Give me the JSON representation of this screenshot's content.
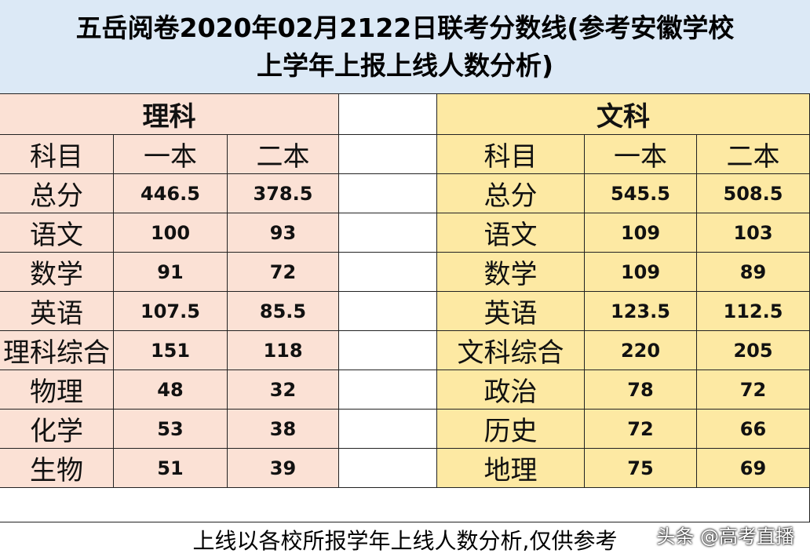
{
  "header": {
    "title_lines": [
      "五岳阅卷2020年02月2122日联考分数线(参考安徽学校",
      "上学年上报上线人数分析)"
    ]
  },
  "science": {
    "title": "理科",
    "columns": [
      "科目",
      "一本",
      "二本"
    ],
    "rows": [
      [
        "总分",
        446.5,
        378.5
      ],
      [
        "语文",
        100,
        93
      ],
      [
        "数学",
        91,
        72
      ],
      [
        "英语",
        107.5,
        85.5
      ],
      [
        "理科综合",
        151,
        118
      ],
      [
        "物理",
        48,
        32
      ],
      [
        "化学",
        53,
        38
      ],
      [
        "生物",
        51,
        39
      ]
    ]
  },
  "liberal": {
    "title": "文科",
    "columns": [
      "科目",
      "一本",
      "二本"
    ],
    "rows": [
      [
        "总分",
        545.5,
        508.5
      ],
      [
        "语文",
        109,
        103
      ],
      [
        "数学",
        109,
        89
      ],
      [
        "英语",
        123.5,
        112.5
      ],
      [
        "文科综合",
        220,
        205
      ],
      [
        "政治",
        78,
        72
      ],
      [
        "历史",
        72,
        66
      ],
      [
        "地理",
        75,
        69
      ]
    ]
  },
  "footer": "上线以各校所报学年上线人数分析,仅供参考",
  "watermark": "头条 @高考直播"
}
